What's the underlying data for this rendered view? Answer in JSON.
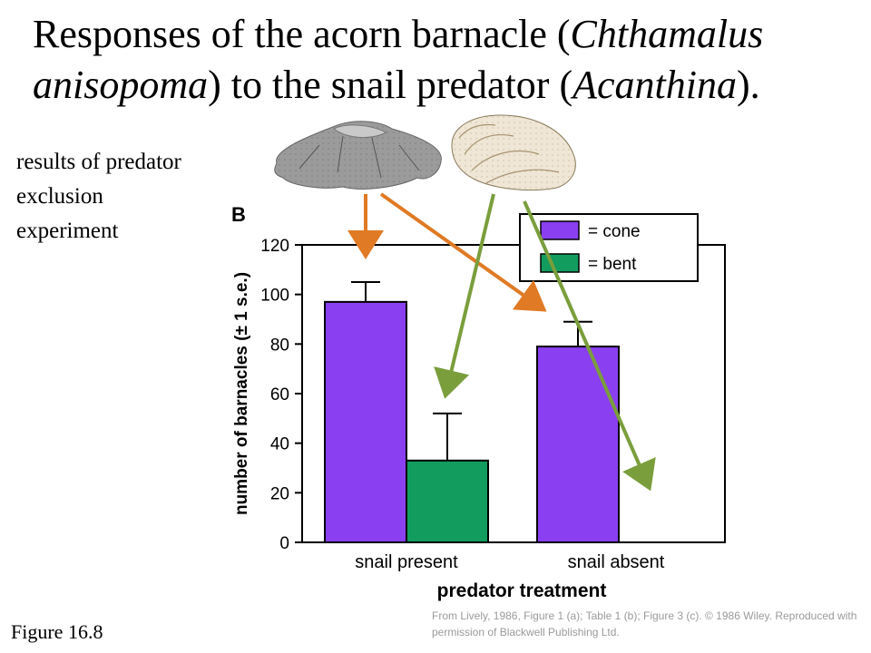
{
  "slide": {
    "title_parts": [
      {
        "text": "Responses of the acorn barnacle (",
        "italic": false
      },
      {
        "text": "Chthamalus anisopoma",
        "italic": true
      },
      {
        "text": ") to the snail predator (",
        "italic": false
      },
      {
        "text": "Acanthina",
        "italic": true
      },
      {
        "text": ").",
        "italic": false
      }
    ],
    "side_note": "results of predator exclusion experiment",
    "figure_label": "Figure 16.8",
    "credit": "From Lively, 1986, Figure 1 (a); Table 1 (b); Figure 3 (c). © 1986 Wiley. Reproduced with permission of Blackwell Publishing Ltd."
  },
  "chart_data": {
    "type": "bar",
    "panel_label": "B",
    "xlabel": "predator treatment",
    "ylabel": "number of barnacles (± 1 s.e.)",
    "ylim": [
      0,
      120
    ],
    "yticks": [
      0,
      20,
      40,
      60,
      80,
      100,
      120
    ],
    "categories": [
      "snail present",
      "snail absent"
    ],
    "series": [
      {
        "name": "= cone",
        "color": "#8a3ff0",
        "values": [
          97,
          79
        ],
        "errors": [
          8,
          10
        ]
      },
      {
        "name": "= bent",
        "color": "#129c5e",
        "values": [
          33,
          0
        ],
        "errors": [
          19,
          0
        ]
      }
    ],
    "legend_position": "top-right",
    "grid": false
  },
  "illustrations": {
    "cone_shell_color": "#9b9b9b",
    "bent_shell_color": "#efe6d6",
    "cone_arrow_color": "#e07a25",
    "bent_arrow_color": "#7a9e3c"
  }
}
